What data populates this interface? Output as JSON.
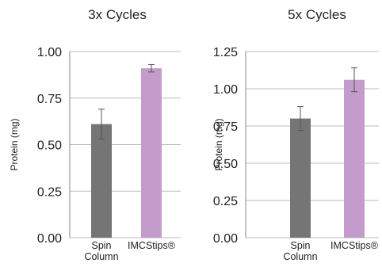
{
  "colors": {
    "gridline": "#bbbbbb",
    "axis": "#888888",
    "bar_spin_column": "#757575",
    "bar_imcstips": "#c49ccc",
    "error_bar": "#555555"
  },
  "chart_data": [
    {
      "type": "bar",
      "title": "3x Cycles",
      "ylabel": "Protein (mg)",
      "xlabel": "",
      "ylim": [
        0,
        1.0
      ],
      "yticks": [
        "0.00",
        "0.25",
        "0.50",
        "0.75",
        "1.00"
      ],
      "yticks_values": [
        0,
        0.25,
        0.5,
        0.75,
        1.0
      ],
      "grid": true,
      "categories": [
        [
          "Spin",
          "Column"
        ],
        [
          "IMCStips®"
        ]
      ],
      "values": [
        0.61,
        0.91
      ],
      "errors": [
        0.08,
        0.02
      ]
    },
    {
      "type": "bar",
      "title": "5x Cycles",
      "ylabel": "Protein (mg)",
      "xlabel": "",
      "ylim": [
        0,
        1.25
      ],
      "yticks": [
        "0.00",
        "0.25",
        "0.50",
        "0.75",
        "1.00",
        "1.25"
      ],
      "yticks_values": [
        0,
        0.25,
        0.5,
        0.75,
        1.0,
        1.25
      ],
      "grid": true,
      "categories": [
        [
          "Spin",
          "Column"
        ],
        [
          "IMCStips®"
        ]
      ],
      "values": [
        0.8,
        1.06
      ],
      "errors": [
        0.08,
        0.08
      ]
    }
  ]
}
